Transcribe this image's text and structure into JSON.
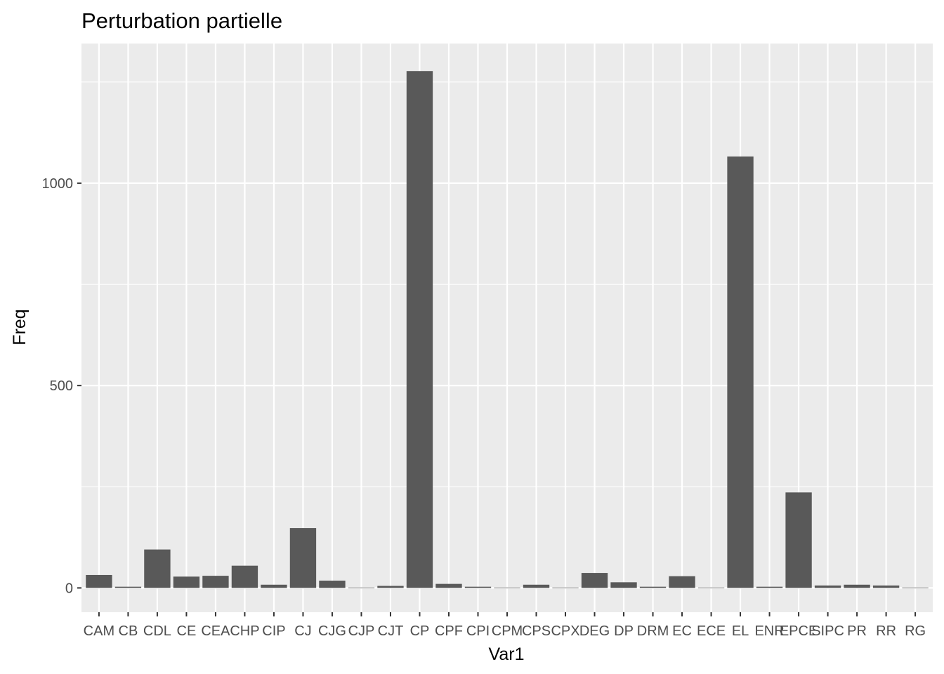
{
  "chart_data": {
    "type": "bar",
    "title": "Perturbation partielle",
    "xlabel": "Var1",
    "ylabel": "Freq",
    "categories": [
      "CAM",
      "CB",
      "CDL",
      "CE",
      "CEA",
      "CHP",
      "CIP",
      "CJ",
      "CJG",
      "CJP",
      "CJT",
      "CP",
      "CPF",
      "CPI",
      "CPM",
      "CPS",
      "CPX",
      "DEG",
      "DP",
      "DRM",
      "EC",
      "ECE",
      "EL",
      "ENR",
      "EPCE",
      "SIPC",
      "PR",
      "RR",
      "RG"
    ],
    "values": [
      32,
      3,
      95,
      28,
      30,
      55,
      8,
      148,
      18,
      1,
      5,
      1277,
      10,
      3,
      1,
      8,
      1,
      37,
      14,
      3,
      29,
      1,
      1066,
      3,
      236,
      6,
      8,
      6,
      1
    ],
    "ylim": [
      -60,
      1345
    ],
    "yticks": [
      0,
      500,
      1000
    ],
    "grid": true,
    "colors": {
      "bar": "#595959",
      "panel": "#ebebeb",
      "grid": "#ffffff"
    }
  }
}
